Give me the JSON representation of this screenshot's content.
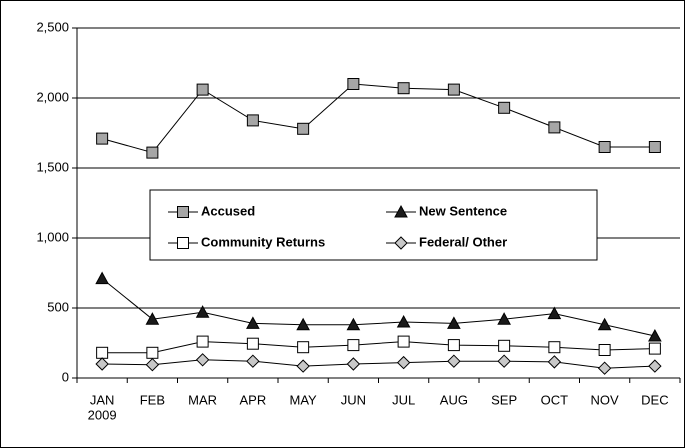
{
  "chart_data": {
    "type": "line",
    "categories": [
      "JAN",
      "FEB",
      "MAR",
      "APR",
      "MAY",
      "JUN",
      "JUL",
      "AUG",
      "SEP",
      "OCT",
      "NOV",
      "DEC"
    ],
    "x_secondary_label": "2009",
    "series": [
      {
        "name": "Accused",
        "marker": "square",
        "color": "#a6a6a6",
        "values": [
          1710,
          1610,
          2060,
          1840,
          1780,
          2100,
          2070,
          2060,
          1930,
          1790,
          1650,
          1650
        ]
      },
      {
        "name": "New Sentence",
        "marker": "triangle",
        "color": "#1a1a1a",
        "values": [
          710,
          420,
          470,
          390,
          380,
          380,
          400,
          390,
          420,
          460,
          380,
          300
        ]
      },
      {
        "name": "Community Returns",
        "marker": "square",
        "color": "#ffffff",
        "values": [
          180,
          180,
          260,
          245,
          220,
          235,
          260,
          235,
          230,
          220,
          200,
          210
        ]
      },
      {
        "name": "Federal/ Other",
        "marker": "diamond",
        "color": "#c8c8c8",
        "values": [
          100,
          95,
          130,
          120,
          85,
          100,
          110,
          120,
          120,
          115,
          70,
          85
        ]
      }
    ],
    "line_color": "#000000",
    "ylim": [
      0,
      2500
    ],
    "yticks": [
      0,
      500,
      {
        "value": 1000,
        "label": "1,000"
      },
      {
        "value": 1500,
        "label": "1,500"
      },
      {
        "value": 2000,
        "label": "2,000"
      },
      {
        "value": 2500,
        "label": "2,500"
      }
    ],
    "grid": true,
    "legend": "center"
  }
}
